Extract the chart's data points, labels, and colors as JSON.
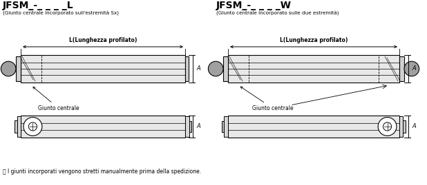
{
  "title_left": "JFSM_-_ _ _ _L",
  "title_right": "JFSM_-_ _ _ _W",
  "subtitle_left": "(Giunto centrale incorporato sull'estremità Sx)",
  "subtitle_right": "(Giunto centrale incorporato sulle due estremità)",
  "label_length": "L(Lunghezza profilato)",
  "label_dim": "A",
  "label_joint": "Giunto centrale",
  "footer": "ⓘ I giunti incorporati vengono stretti manualmente prima della spedizione.",
  "bg_color": "#ffffff",
  "line_color": "#000000",
  "fill_color": "#e8e8e8"
}
